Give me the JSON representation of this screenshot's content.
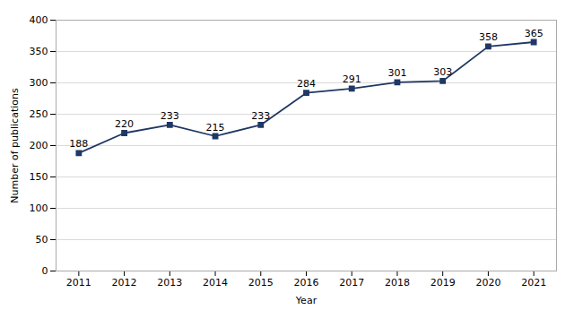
{
  "chart_data": {
    "type": "line",
    "x": [
      2011,
      2012,
      2013,
      2014,
      2015,
      2016,
      2017,
      2018,
      2019,
      2020,
      2021
    ],
    "values": [
      188,
      220,
      233,
      215,
      233,
      284,
      291,
      301,
      303,
      358,
      365
    ],
    "color": "#1F3864",
    "marker": "square",
    "xlabel": "Year",
    "ylabel": "Number of publications",
    "xlim": [
      2010.5,
      2021.5
    ],
    "xticks": [
      2011,
      2012,
      2013,
      2014,
      2015,
      2016,
      2017,
      2018,
      2019,
      2020,
      2021
    ],
    "ylim": [
      0,
      400
    ],
    "yticks": [
      0,
      50,
      100,
      150,
      200,
      250,
      300,
      350,
      400
    ],
    "grid": true,
    "data_labels": true
  }
}
